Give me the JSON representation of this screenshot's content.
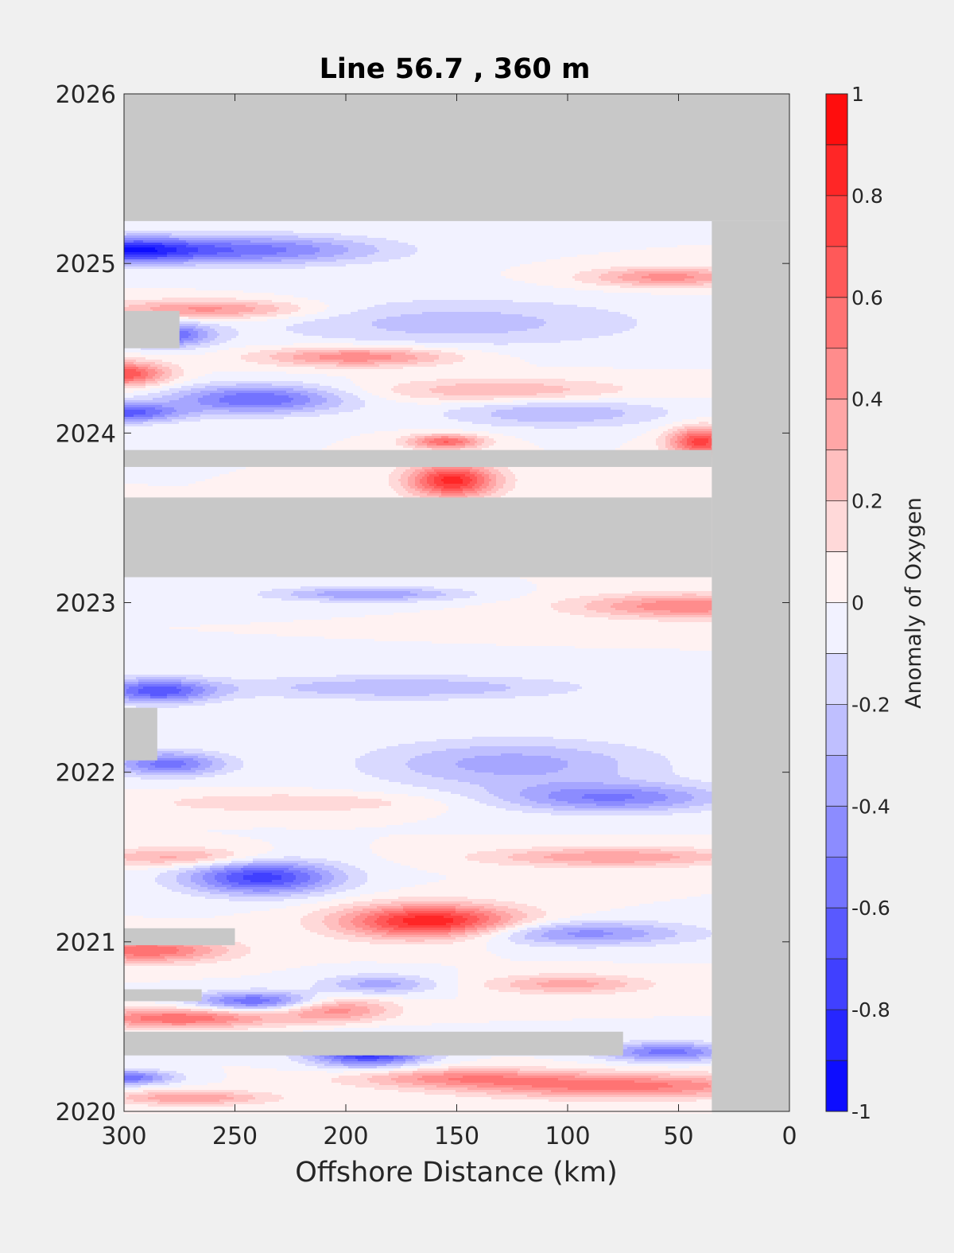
{
  "chart_data": {
    "type": "heatmap",
    "title": "Line 56.7 , 360 m",
    "xlabel": "Offshore Distance (km)",
    "ylabel": "",
    "xlim": [
      300,
      0
    ],
    "x_reversed": true,
    "ylim": [
      2020,
      2026
    ],
    "xticks": [
      300,
      250,
      200,
      150,
      100,
      50,
      0
    ],
    "yticks": [
      2020,
      2021,
      2022,
      2023,
      2024,
      2025,
      2026
    ],
    "grid": false,
    "colorbar": {
      "label": "Anomaly of Oxygen",
      "range": [
        -1,
        1
      ],
      "ticks": [
        -1,
        -0.8,
        -0.6,
        -0.4,
        -0.2,
        0,
        0.2,
        0.4,
        0.6,
        0.8,
        1
      ],
      "tick_labels": [
        "-1",
        "-0.8",
        "-0.6",
        "-0.4",
        "-0.2",
        "0",
        "0.2",
        "0.4",
        "0.6",
        "0.8",
        "1"
      ],
      "levels": 20,
      "colormap": "blue-white-red"
    },
    "missing_color": "#c8c8c8",
    "data_coverage": {
      "time_range": [
        2020.0,
        2025.25
      ],
      "distance_range": [
        300,
        35
      ]
    },
    "missing_regions": [
      {
        "x": [
          300,
          0
        ],
        "y": [
          2025.25,
          2026
        ]
      },
      {
        "x": [
          35,
          0
        ],
        "y": [
          2020,
          2025.25
        ]
      },
      {
        "x": [
          300,
          35
        ],
        "y": [
          2023.15,
          2023.62
        ]
      },
      {
        "x": [
          300,
          35
        ],
        "y": [
          2023.8,
          2023.9
        ]
      },
      {
        "x": [
          300,
          75
        ],
        "y": [
          2020.33,
          2020.47
        ]
      },
      {
        "x": [
          300,
          265
        ],
        "y": [
          2020.65,
          2020.72
        ]
      },
      {
        "x": [
          300,
          250
        ],
        "y": [
          2020.98,
          2021.08
        ]
      },
      {
        "x": [
          300,
          285
        ],
        "y": [
          2022.07,
          2022.38
        ]
      },
      {
        "x": [
          300,
          275
        ],
        "y": [
          2024.5,
          2024.72
        ]
      }
    ],
    "anomaly_features": [
      {
        "x": 162,
        "y": 2021.12,
        "sx": 28,
        "sy": 0.07,
        "value": 0.9
      },
      {
        "x": 152,
        "y": 2023.72,
        "sx": 14,
        "sy": 0.07,
        "value": 0.85
      },
      {
        "x": 155,
        "y": 2023.95,
        "sx": 12,
        "sy": 0.03,
        "value": 0.6
      },
      {
        "x": 238,
        "y": 2021.38,
        "sx": 24,
        "sy": 0.07,
        "value": -0.75
      },
      {
        "x": 190,
        "y": 2020.35,
        "sx": 18,
        "sy": 0.06,
        "value": -0.85
      },
      {
        "x": 300,
        "y": 2025.08,
        "sx": 22,
        "sy": 0.05,
        "value": -0.7
      },
      {
        "x": 245,
        "y": 2025.08,
        "sx": 42,
        "sy": 0.06,
        "value": -0.55
      },
      {
        "x": 300,
        "y": 2024.35,
        "sx": 14,
        "sy": 0.05,
        "value": 0.7
      },
      {
        "x": 300,
        "y": 2024.12,
        "sx": 18,
        "sy": 0.04,
        "value": -0.65
      },
      {
        "x": 240,
        "y": 2024.2,
        "sx": 28,
        "sy": 0.06,
        "value": -0.6
      },
      {
        "x": 280,
        "y": 2024.58,
        "sx": 14,
        "sy": 0.05,
        "value": -0.6
      },
      {
        "x": 262,
        "y": 2024.73,
        "sx": 32,
        "sy": 0.04,
        "value": 0.45
      },
      {
        "x": 195,
        "y": 2024.45,
        "sx": 30,
        "sy": 0.04,
        "value": 0.5
      },
      {
        "x": 130,
        "y": 2024.25,
        "sx": 40,
        "sy": 0.05,
        "value": 0.3
      },
      {
        "x": 40,
        "y": 2023.95,
        "sx": 10,
        "sy": 0.06,
        "value": 0.75
      },
      {
        "x": 55,
        "y": 2024.92,
        "sx": 25,
        "sy": 0.04,
        "value": 0.45
      },
      {
        "x": 105,
        "y": 2024.12,
        "sx": 35,
        "sy": 0.06,
        "value": -0.3
      },
      {
        "x": 150,
        "y": 2024.65,
        "sx": 60,
        "sy": 0.1,
        "value": -0.25
      },
      {
        "x": 45,
        "y": 2022.98,
        "sx": 35,
        "sy": 0.05,
        "value": 0.5
      },
      {
        "x": 190,
        "y": 2023.05,
        "sx": 30,
        "sy": 0.03,
        "value": -0.4
      },
      {
        "x": 285,
        "y": 2022.48,
        "sx": 18,
        "sy": 0.05,
        "value": -0.65
      },
      {
        "x": 280,
        "y": 2022.05,
        "sx": 18,
        "sy": 0.05,
        "value": -0.55
      },
      {
        "x": 80,
        "y": 2021.85,
        "sx": 35,
        "sy": 0.06,
        "value": -0.5
      },
      {
        "x": 125,
        "y": 2022.05,
        "sx": 45,
        "sy": 0.1,
        "value": -0.35
      },
      {
        "x": 80,
        "y": 2021.5,
        "sx": 40,
        "sy": 0.04,
        "value": 0.4
      },
      {
        "x": 275,
        "y": 2021.5,
        "sx": 25,
        "sy": 0.04,
        "value": 0.35
      },
      {
        "x": 290,
        "y": 2020.95,
        "sx": 25,
        "sy": 0.05,
        "value": 0.6
      },
      {
        "x": 275,
        "y": 2020.55,
        "sx": 30,
        "sy": 0.04,
        "value": 0.6
      },
      {
        "x": 240,
        "y": 2020.65,
        "sx": 20,
        "sy": 0.04,
        "value": -0.6
      },
      {
        "x": 205,
        "y": 2020.6,
        "sx": 18,
        "sy": 0.05,
        "value": 0.45
      },
      {
        "x": 95,
        "y": 2021.05,
        "sx": 35,
        "sy": 0.05,
        "value": -0.45
      },
      {
        "x": 55,
        "y": 2020.35,
        "sx": 20,
        "sy": 0.04,
        "value": -0.55
      },
      {
        "x": 75,
        "y": 2020.15,
        "sx": 50,
        "sy": 0.05,
        "value": 0.55
      },
      {
        "x": 150,
        "y": 2020.2,
        "sx": 35,
        "sy": 0.04,
        "value": 0.4
      },
      {
        "x": 270,
        "y": 2020.08,
        "sx": 25,
        "sy": 0.03,
        "value": 0.4
      },
      {
        "x": 300,
        "y": 2020.2,
        "sx": 15,
        "sy": 0.03,
        "value": -0.6
      },
      {
        "x": 100,
        "y": 2020.75,
        "sx": 25,
        "sy": 0.04,
        "value": 0.35
      },
      {
        "x": 185,
        "y": 2020.75,
        "sx": 18,
        "sy": 0.04,
        "value": -0.35
      },
      {
        "x": 225,
        "y": 2021.82,
        "sx": 45,
        "sy": 0.04,
        "value": 0.2
      },
      {
        "x": 175,
        "y": 2022.5,
        "sx": 55,
        "sy": 0.05,
        "value": -0.3
      }
    ]
  }
}
